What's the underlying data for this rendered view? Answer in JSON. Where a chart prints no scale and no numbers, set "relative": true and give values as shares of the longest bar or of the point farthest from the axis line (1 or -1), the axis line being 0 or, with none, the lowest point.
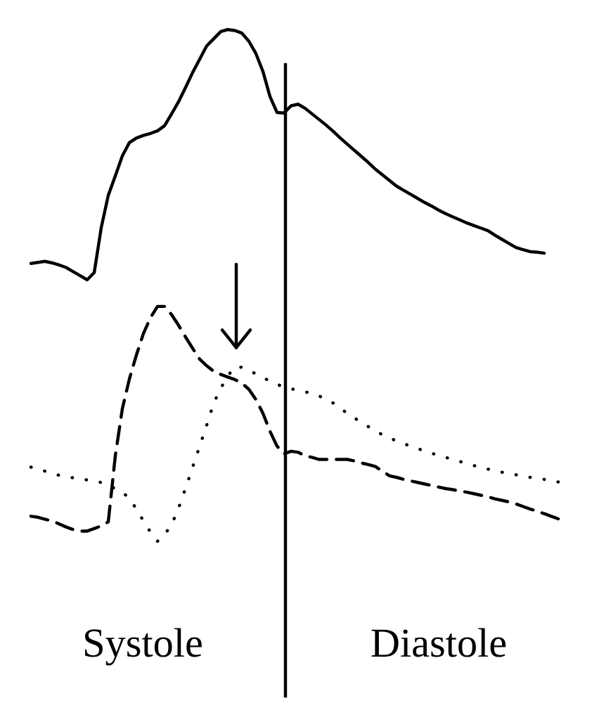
{
  "chart_data": {
    "type": "line",
    "relative": true,
    "categories": [
      null,
      null,
      null,
      null,
      null,
      null,
      null,
      null,
      null,
      null,
      null,
      null,
      null,
      null,
      null,
      null,
      null,
      null,
      null,
      null,
      null,
      null,
      null,
      null,
      null,
      null,
      null,
      null,
      null,
      null,
      null,
      null,
      null,
      null,
      null,
      null,
      null,
      null,
      null,
      null,
      null,
      null,
      null,
      null,
      null,
      null,
      null,
      null,
      null,
      null,
      null,
      null,
      null,
      null,
      null,
      null,
      null,
      null,
      null,
      null,
      null,
      null,
      null,
      null,
      null,
      null,
      null,
      null,
      null,
      null,
      null,
      null,
      null,
      null,
      null,
      null
    ],
    "series": [
      {
        "color": "#000000",
        "line_style": "solid",
        "values": [
          0.543,
          0.545,
          0.547,
          0.544,
          0.54,
          0.535,
          0.527,
          0.519,
          0.511,
          0.525,
          0.613,
          0.676,
          0.714,
          0.753,
          0.779,
          0.788,
          0.793,
          0.797,
          0.802,
          0.812,
          0.835,
          0.859,
          0.887,
          0.916,
          0.942,
          0.968,
          0.982,
          0.996,
          1.0,
          0.998,
          0.993,
          0.977,
          0.953,
          0.918,
          0.869,
          0.838,
          0.837,
          0.851,
          0.854,
          0.846,
          0.835,
          0.824,
          0.813,
          0.801,
          0.788,
          0.776,
          0.764,
          0.752,
          0.74,
          0.727,
          0.716,
          0.705,
          0.694,
          0.686,
          0.678,
          0.67,
          0.662,
          0.655,
          0.647,
          0.64,
          0.634,
          0.628,
          0.622,
          0.617,
          0.612,
          0.607,
          0.598,
          0.59,
          0.582,
          0.574,
          0.57,
          0.566,
          0.565,
          0.563,
          null,
          null
        ]
      },
      {
        "color": "#000000",
        "line_style": "dashed",
        "values": [
          0.049,
          0.047,
          0.043,
          0.04,
          0.034,
          0.028,
          0.023,
          0.02,
          0.02,
          0.025,
          0.03,
          0.038,
          0.167,
          0.259,
          0.317,
          0.364,
          0.406,
          0.437,
          0.459,
          0.459,
          0.443,
          0.422,
          0.399,
          0.377,
          0.356,
          0.343,
          0.332,
          0.326,
          0.321,
          0.316,
          0.309,
          0.297,
          0.277,
          0.25,
          0.215,
          0.186,
          0.171,
          0.176,
          0.174,
          0.167,
          0.164,
          0.16,
          0.16,
          0.16,
          0.16,
          0.16,
          0.157,
          0.153,
          0.15,
          0.146,
          0.137,
          0.128,
          0.125,
          0.121,
          0.118,
          0.115,
          0.112,
          0.109,
          0.106,
          0.103,
          0.101,
          0.098,
          0.096,
          0.093,
          0.09,
          0.087,
          0.083,
          0.08,
          0.077,
          0.073,
          0.068,
          0.063,
          0.059,
          0.054,
          0.049,
          0.044
        ]
      },
      {
        "color": "#000000",
        "line_style": "dotted",
        "values": [
          0.145,
          0.141,
          0.137,
          0.133,
          0.129,
          0.127,
          0.124,
          0.122,
          0.12,
          0.117,
          0.115,
          0.109,
          0.103,
          0.096,
          0.084,
          0.063,
          0.04,
          0.018,
          0.0,
          0.013,
          0.032,
          0.065,
          0.104,
          0.145,
          0.186,
          0.227,
          0.27,
          0.299,
          0.323,
          0.341,
          0.34,
          0.334,
          0.327,
          0.32,
          0.313,
          0.307,
          0.301,
          0.298,
          0.295,
          0.292,
          0.289,
          0.284,
          0.277,
          0.27,
          0.26,
          0.25,
          0.241,
          0.232,
          0.224,
          0.216,
          0.208,
          0.202,
          0.196,
          0.191,
          0.186,
          0.181,
          0.177,
          0.172,
          0.168,
          0.164,
          0.16,
          0.156,
          0.152,
          0.148,
          0.145,
          0.141,
          0.138,
          0.135,
          0.132,
          0.13,
          0.127,
          0.125,
          0.123,
          0.121,
          0.118,
          0.116
        ]
      }
    ],
    "annotations": [
      "Systole",
      "Diastole"
    ]
  }
}
